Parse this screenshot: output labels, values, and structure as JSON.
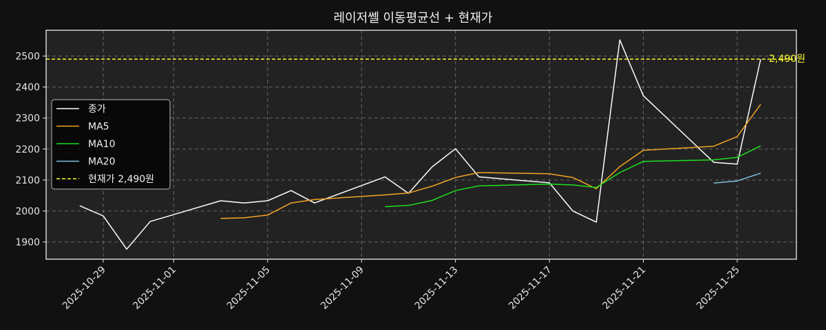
{
  "title": "레이저쎌 이동평균선 + 현재가",
  "chart_data": {
    "type": "line",
    "title": "레이저쎌 이동평균선 + 현재가",
    "xlabel": "",
    "ylabel": "",
    "ylim": [
      1845,
      2585
    ],
    "grid": true,
    "legend_position": "center-left",
    "y_ticks": [
      1900,
      2000,
      2100,
      2200,
      2300,
      2400,
      2500
    ],
    "x_ticks": [
      "2025-10-29",
      "2025-11-01",
      "2025-11-05",
      "2025-11-09",
      "2025-11-13",
      "2025-11-17",
      "2025-11-21",
      "2025-11-25"
    ],
    "x": [
      "2025-10-28",
      "2025-10-29",
      "2025-10-30",
      "2025-10-31",
      "2025-11-03",
      "2025-11-04",
      "2025-11-05",
      "2025-11-06",
      "2025-11-07",
      "2025-11-10",
      "2025-11-11",
      "2025-11-12",
      "2025-11-13",
      "2025-11-14",
      "2025-11-17",
      "2025-11-18",
      "2025-11-19",
      "2025-11-20",
      "2025-11-21",
      "2025-11-24",
      "2025-11-25",
      "2025-11-26"
    ],
    "series": [
      {
        "name": "종가",
        "color": "#ffffff",
        "values": [
          2017,
          1984,
          1877,
          1966,
          2033,
          2026,
          2033,
          2066,
          2026,
          2110,
          2057,
          2142,
          2201,
          2110,
          2091,
          2000,
          1964,
          2552,
          2372,
          2157,
          2151,
          2490
        ]
      },
      {
        "name": "MA5",
        "color": "#f5a623",
        "values": [
          null,
          null,
          null,
          null,
          1976,
          1978,
          1987,
          2026,
          2037,
          2052,
          2058,
          2080,
          2108,
          2124,
          2120,
          2108,
          2072,
          2143,
          2196,
          2209,
          2240,
          2344
        ]
      },
      {
        "name": "MA10",
        "color": "#1ee01e",
        "values": [
          null,
          null,
          null,
          null,
          null,
          null,
          null,
          null,
          null,
          2014,
          2018,
          2034,
          2066,
          2081,
          2087,
          2084,
          2076,
          2124,
          2160,
          2165,
          2173,
          2210
        ]
      },
      {
        "name": "MA20",
        "color": "#7fc4dd",
        "values": [
          null,
          null,
          null,
          null,
          null,
          null,
          null,
          null,
          null,
          null,
          null,
          null,
          null,
          null,
          null,
          null,
          null,
          null,
          null,
          2090,
          2097,
          2122
        ]
      }
    ],
    "hline": {
      "name": "현재가 2,490원",
      "value": 2490,
      "color": "#ffff33",
      "style": "dashed",
      "label": "2,490원"
    }
  },
  "legend": [
    {
      "label": "종가",
      "color": "#ffffff",
      "dashed": false
    },
    {
      "label": "MA5",
      "color": "#f5a623",
      "dashed": false
    },
    {
      "label": "MA10",
      "color": "#1ee01e",
      "dashed": false
    },
    {
      "label": "MA20",
      "color": "#7fc4dd",
      "dashed": false
    },
    {
      "label": "현재가 2,490원",
      "color": "#ffff33",
      "dashed": true
    }
  ]
}
